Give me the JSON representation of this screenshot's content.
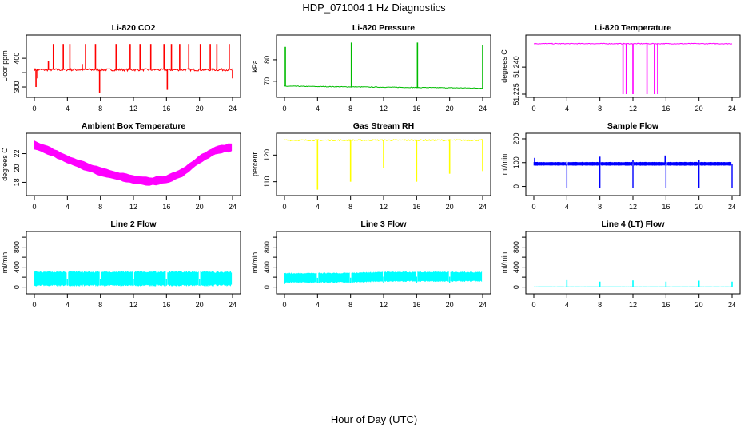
{
  "figure": {
    "title": "HDP_071004  1 Hz Diagnostics",
    "xlabel": "Hour of Day (UTC)"
  },
  "chart_data": [
    {
      "type": "line",
      "title": "Li-820 CO2",
      "ylabel": "Licor ppm",
      "color": "#ff0000",
      "xlim": [
        0,
        24
      ],
      "ylim": [
        275,
        470
      ],
      "xticks": [
        0,
        4,
        8,
        12,
        16,
        20,
        24
      ],
      "yticks": [
        300,
        350,
        400
      ],
      "yticklabels": [
        "300",
        "",
        "400"
      ],
      "baseline": 360,
      "noise": 4,
      "spikes": [
        [
          0.2,
          300
        ],
        [
          0.4,
          330
        ],
        [
          1.7,
          390
        ],
        [
          2.3,
          450
        ],
        [
          3.5,
          450
        ],
        [
          4.3,
          450
        ],
        [
          5.8,
          380
        ],
        [
          6.2,
          450
        ],
        [
          7.4,
          450
        ],
        [
          7.9,
          280
        ],
        [
          9.9,
          450
        ],
        [
          11.6,
          450
        ],
        [
          12.8,
          450
        ],
        [
          14.1,
          450
        ],
        [
          15.7,
          450
        ],
        [
          16.1,
          290
        ],
        [
          16.6,
          450
        ],
        [
          17.6,
          450
        ],
        [
          18.7,
          450
        ],
        [
          20.1,
          450
        ],
        [
          21.3,
          450
        ],
        [
          22.1,
          450
        ],
        [
          23.6,
          450
        ],
        [
          24.0,
          330
        ]
      ]
    },
    {
      "type": "line",
      "title": "Li-820 Pressure",
      "ylabel": "kPa",
      "color": "#00bb00",
      "xlim": [
        0,
        24
      ],
      "ylim": [
        64,
        90
      ],
      "xticks": [
        0,
        4,
        8,
        12,
        16,
        20,
        24
      ],
      "yticks": [
        70,
        80
      ],
      "yticklabels": [
        "70",
        "80"
      ],
      "start": 67.7,
      "end": 66.8,
      "noise": 0.15,
      "spikes": [
        [
          0.1,
          86
        ],
        [
          8.1,
          88
        ],
        [
          16.1,
          88
        ],
        [
          24.0,
          87
        ]
      ]
    },
    {
      "type": "line",
      "title": "Li-820 Temperature",
      "ylabel": "degrees C",
      "color": "#ff00ff",
      "xlim": [
        0,
        24
      ],
      "ylim": [
        51.225,
        51.256
      ],
      "xticks": [
        0,
        4,
        8,
        12,
        16,
        20,
        24
      ],
      "yticks": [
        51.225,
        51.24
      ],
      "yticklabels": [
        "51.225",
        "51.240"
      ],
      "baseline": 51.253,
      "noise": 0.0002,
      "spikes": [
        [
          10.8,
          51.225
        ],
        [
          11.2,
          51.225
        ],
        [
          12.0,
          51.225
        ],
        [
          13.7,
          51.225
        ],
        [
          14.6,
          51.225
        ],
        [
          15.0,
          51.225
        ]
      ]
    },
    {
      "type": "band",
      "title": "Ambient Box Temperature",
      "ylabel": "degrees C",
      "color": "#ff00ff",
      "xlim": [
        0,
        24
      ],
      "ylim": [
        16.6,
        24.4
      ],
      "xticks": [
        0,
        4,
        8,
        12,
        16,
        20,
        24
      ],
      "yticks": [
        18,
        20,
        22
      ],
      "yticklabels": [
        "18",
        "20",
        "22"
      ],
      "x": [
        0,
        2,
        4,
        6,
        8,
        10,
        12,
        14,
        16,
        18,
        20,
        22,
        24
      ],
      "values": [
        23.2,
        22.3,
        21.2,
        20.3,
        19.5,
        18.9,
        18.4,
        18.1,
        18.4,
        19.4,
        21.2,
        22.5,
        22.9
      ],
      "halfwidth": 0.6
    },
    {
      "type": "line",
      "title": "Gas Stream RH",
      "ylabel": "percent",
      "color": "#ffff00",
      "xlim": [
        0,
        24
      ],
      "ylim": [
        106,
        127
      ],
      "xticks": [
        0,
        4,
        8,
        12,
        16,
        20,
        24
      ],
      "yticks": [
        110,
        120
      ],
      "yticklabels": [
        "110",
        "120"
      ],
      "baseline": 125.6,
      "noise": 0.25,
      "spikes": [
        [
          4.0,
          107
        ],
        [
          8.0,
          110
        ],
        [
          12.0,
          115
        ],
        [
          16.0,
          110
        ],
        [
          20.0,
          113
        ],
        [
          24.0,
          114
        ]
      ]
    },
    {
      "type": "band",
      "title": "Sample Flow",
      "ylabel": "ml/min",
      "color": "#0000ff",
      "xlim": [
        0,
        24
      ],
      "ylim": [
        -25,
        210
      ],
      "xticks": [
        0,
        4,
        8,
        12,
        16,
        20,
        24
      ],
      "yticks": [
        0,
        100,
        200
      ],
      "yticklabels": [
        "0",
        "100",
        "200"
      ],
      "x": [
        0,
        24
      ],
      "values": [
        95,
        95
      ],
      "halfwidth": 7,
      "gaps": [
        4,
        8,
        12,
        16,
        20,
        24
      ],
      "gapmin": -5,
      "spikes": [
        [
          0.1,
          120
        ],
        [
          8.0,
          125
        ],
        [
          12.0,
          110
        ],
        [
          15.9,
          130
        ],
        [
          20.0,
          110
        ]
      ]
    },
    {
      "type": "band",
      "title": "Line 2 Flow",
      "ylabel": "ml/min",
      "color": "#00ffff",
      "xlim": [
        0,
        24
      ],
      "ylim": [
        -70,
        1050
      ],
      "xticks": [
        0,
        4,
        8,
        12,
        16,
        20,
        24
      ],
      "yticks": [
        0,
        200,
        400,
        600,
        800,
        1000
      ],
      "yticklabels": [
        "0",
        "400",
        "800"
      ],
      "ylabelevery": 2,
      "x": [
        0,
        24
      ],
      "values": [
        170,
        170
      ],
      "halfwidth": 150,
      "gaps": [
        4,
        8,
        12,
        16,
        20
      ],
      "gapmin": 30
    },
    {
      "type": "band",
      "title": "Line 3 Flow",
      "ylabel": "ml/min",
      "color": "#00ffff",
      "xlim": [
        0,
        24
      ],
      "ylim": [
        -70,
        1050
      ],
      "xticks": [
        0,
        4,
        8,
        12,
        16,
        20,
        24
      ],
      "yticks": [
        0,
        200,
        400,
        600,
        800,
        1000
      ],
      "yticklabels": [
        "0",
        "400",
        "800"
      ],
      "ylabelevery": 2,
      "x": [
        0,
        8,
        12,
        24
      ],
      "values": [
        185,
        190,
        210,
        210
      ],
      "halfwidth": 100,
      "gaps": [
        4,
        8,
        12,
        16,
        20
      ],
      "gapmin": 80,
      "spikes": [
        [
          0.0,
          60
        ]
      ]
    },
    {
      "type": "line",
      "title": "Line 4 (LT) Flow",
      "ylabel": "ml/min",
      "color": "#00ffff",
      "xlim": [
        0,
        24
      ],
      "ylim": [
        -70,
        1050
      ],
      "xticks": [
        0,
        4,
        8,
        12,
        16,
        20,
        24
      ],
      "yticks": [
        0,
        200,
        400,
        600,
        800,
        1000
      ],
      "yticklabels": [
        "0",
        "400",
        "800"
      ],
      "ylabelevery": 2,
      "baseline": 5,
      "noise": 1,
      "spikes": [
        [
          4.0,
          140
        ],
        [
          8.0,
          110
        ],
        [
          12.0,
          135
        ],
        [
          16.0,
          110
        ],
        [
          20.0,
          130
        ],
        [
          24.0,
          110
        ]
      ]
    }
  ]
}
